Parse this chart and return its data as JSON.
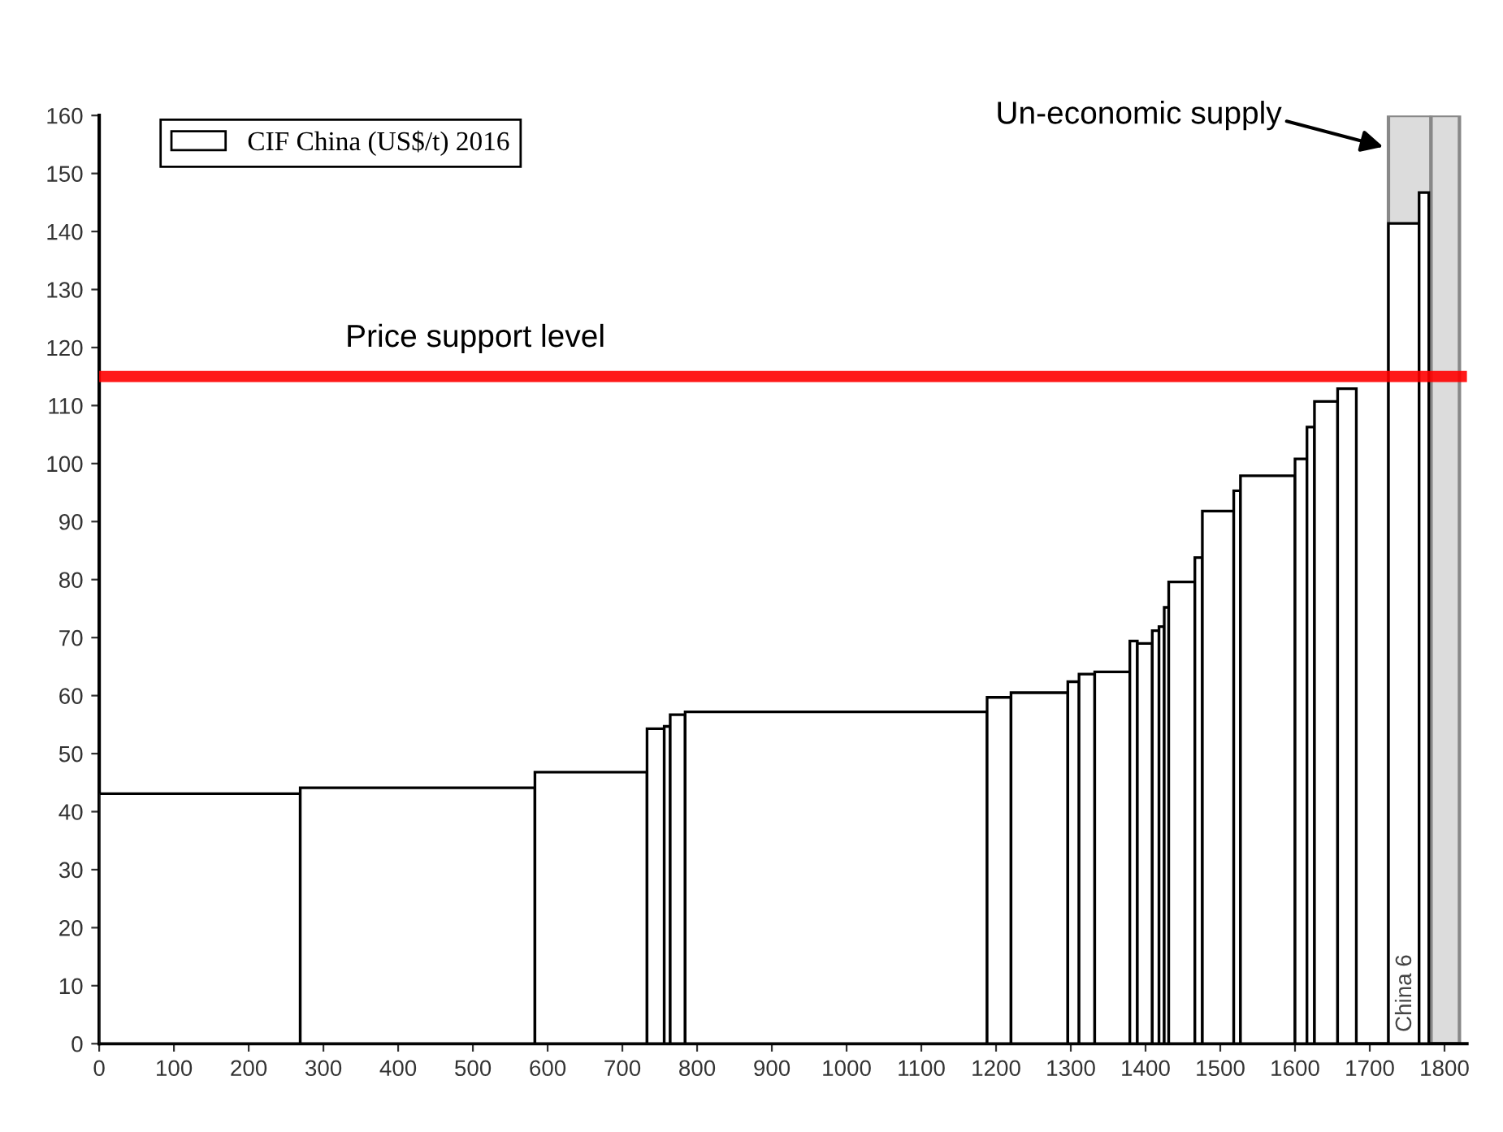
{
  "chart_data": {
    "type": "histogram",
    "bins": [
      0,
      269,
      583,
      733,
      756,
      764,
      784,
      1188,
      1220,
      1296,
      1311,
      1332,
      1379,
      1389,
      1409,
      1418,
      1425,
      1431,
      1466,
      1476,
      1518,
      1527,
      1600,
      1616,
      1626,
      1657,
      1682,
      1725,
      1766,
      1779
    ],
    "series": [
      {
        "name": "CIF China (US$/t) 2016",
        "color": "#ffffff",
        "values": [
          43.1,
          44.1,
          46.8,
          54.3,
          54.7,
          56.7,
          57.2,
          59.7,
          60.5,
          62.4,
          63.7,
          64.1,
          69.4,
          69.0,
          71.2,
          71.9,
          75.2,
          79.6,
          83.8,
          91.8,
          95.3,
          97.9,
          100.8,
          106.3,
          110.7,
          112.9,
          null,
          141.4,
          146.7
        ]
      }
    ],
    "xlim": [
      0,
      1830
    ],
    "ylim": [
      0,
      160
    ],
    "xticks": [
      0,
      100,
      200,
      300,
      400,
      500,
      600,
      700,
      800,
      900,
      1000,
      1100,
      1200,
      1300,
      1400,
      1500,
      1600,
      1700,
      1800
    ],
    "yticks": [
      0,
      10,
      20,
      30,
      40,
      50,
      60,
      70,
      80,
      90,
      100,
      110,
      120,
      130,
      140,
      150,
      160
    ],
    "ref_lines": [
      {
        "axis": "y",
        "value": 115,
        "label": "Price support level",
        "color": "#ff0000"
      }
    ],
    "bands": [
      {
        "axis": "x",
        "from": 1725,
        "to": 1782,
        "label": "China 6",
        "color": "#dcdcdc"
      },
      {
        "axis": "x",
        "from": 1782,
        "to": 1820,
        "color": "#dcdcdc"
      }
    ],
    "annotations": [
      "Un-economic supply"
    ],
    "legend": "top left",
    "grid": false
  }
}
